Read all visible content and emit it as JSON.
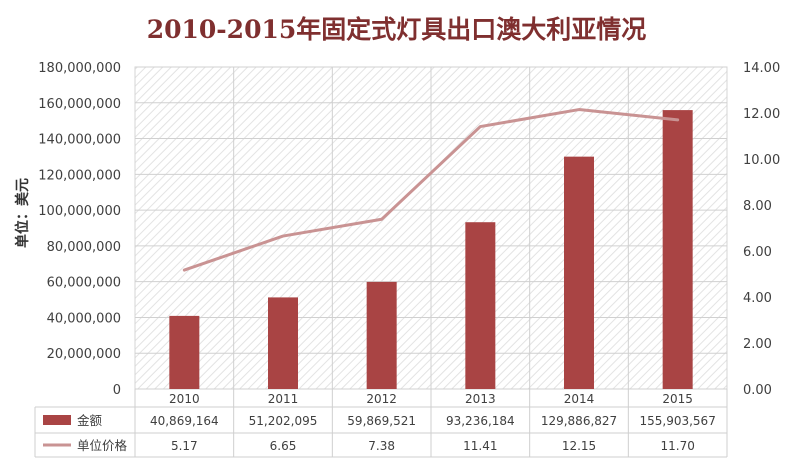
{
  "chart_data": {
    "type": "bar",
    "title": "2010-2015年固定式灯具出口澳大利亚情况",
    "ylabel": "单位：美元",
    "categories": [
      "2010",
      "2011",
      "2012",
      "2013",
      "2014",
      "2015"
    ],
    "ylim": [
      0,
      180000000
    ],
    "y2lim": [
      0,
      14
    ],
    "y_ticks": [
      "0",
      "20,000,000",
      "40,000,000",
      "60,000,000",
      "80,000,000",
      "100,000,000",
      "120,000,000",
      "140,000,000",
      "160,000,000",
      "180,000,000"
    ],
    "y2_ticks": [
      "0.00",
      "2.00",
      "4.00",
      "6.00",
      "8.00",
      "10.00",
      "12.00",
      "14.00"
    ],
    "series": [
      {
        "name": "金额",
        "type": "bar",
        "axis": "left",
        "color": "#a94444",
        "values": [
          40869164,
          51202095,
          59869521,
          93236184,
          129886827,
          155903567
        ],
        "labels": [
          "40,869,164",
          "51,202,095",
          "59,869,521",
          "93,236,184",
          "129,886,827",
          "155,903,567"
        ]
      },
      {
        "name": "单位价格",
        "type": "line",
        "axis": "right",
        "color": "#c99393",
        "values": [
          5.17,
          6.65,
          7.38,
          11.41,
          12.15,
          11.7
        ],
        "labels": [
          "5.17",
          "6.65",
          "7.38",
          "11.41",
          "12.15",
          "11.70"
        ]
      }
    ],
    "grid": true,
    "legend": "data-table"
  }
}
